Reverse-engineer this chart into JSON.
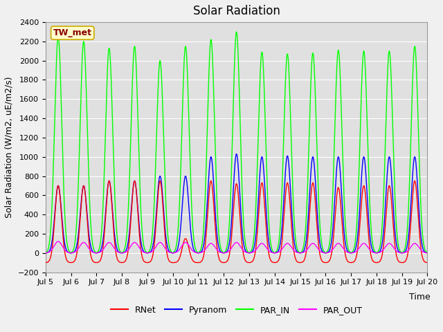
{
  "title": "Solar Radiation",
  "ylabel": "Solar Radiation (W/m2, uE/m2/s)",
  "xlabel": "Time",
  "site_label": "TW_met",
  "ylim": [
    -200,
    2400
  ],
  "yticks": [
    -200,
    0,
    200,
    400,
    600,
    800,
    1000,
    1200,
    1400,
    1600,
    1800,
    2000,
    2200,
    2400
  ],
  "x_start_day": 5,
  "x_end_day": 20,
  "xtick_days": [
    5,
    6,
    7,
    8,
    9,
    10,
    11,
    12,
    13,
    14,
    15,
    16,
    17,
    18,
    19,
    20
  ],
  "xtick_labels": [
    "Jul 5",
    "Jul 6",
    "Jul 7",
    "Jul 8",
    "Jul 9",
    "Jul 10",
    "Jul 11",
    "Jul 12",
    "Jul 13",
    "Jul 14",
    "Jul 15",
    "Jul 16",
    "Jul 17",
    "Jul 18",
    "Jul 19",
    "Jul 20"
  ],
  "n_points_per_day": 288,
  "colors": {
    "RNet": "#ff0000",
    "Pyranom": "#0000ff",
    "PAR_IN": "#00ff00",
    "PAR_OUT": "#ff00ff"
  },
  "line_widths": {
    "RNet": 1.0,
    "Pyranom": 1.0,
    "PAR_IN": 1.0,
    "PAR_OUT": 1.0
  },
  "rnet_peaks": [
    700,
    700,
    750,
    750,
    750,
    150,
    750,
    720,
    730,
    730,
    730,
    680,
    700,
    700,
    750
  ],
  "pyranom_peaks": [
    700,
    700,
    750,
    750,
    800,
    800,
    1000,
    1030,
    1000,
    1010,
    1000,
    1000,
    1000,
    1000,
    1000
  ],
  "par_in_peaks": [
    2250,
    2200,
    2130,
    2150,
    2000,
    2150,
    2220,
    2300,
    2090,
    2070,
    2080,
    2110,
    2100,
    2100,
    2150
  ],
  "par_out_peaks": [
    120,
    110,
    110,
    110,
    110,
    110,
    100,
    110,
    100,
    100,
    100,
    100,
    100,
    100,
    100
  ],
  "rnet_night": -100,
  "par_out_night": 0,
  "pyranom_night": 0,
  "par_in_night": 0,
  "plot_bg": "#e0e0e0",
  "fig_bg": "#f0f0f0",
  "title_fontsize": 12,
  "label_fontsize": 9,
  "tick_fontsize": 8,
  "legend_fontsize": 9,
  "site_label_fontsize": 9
}
